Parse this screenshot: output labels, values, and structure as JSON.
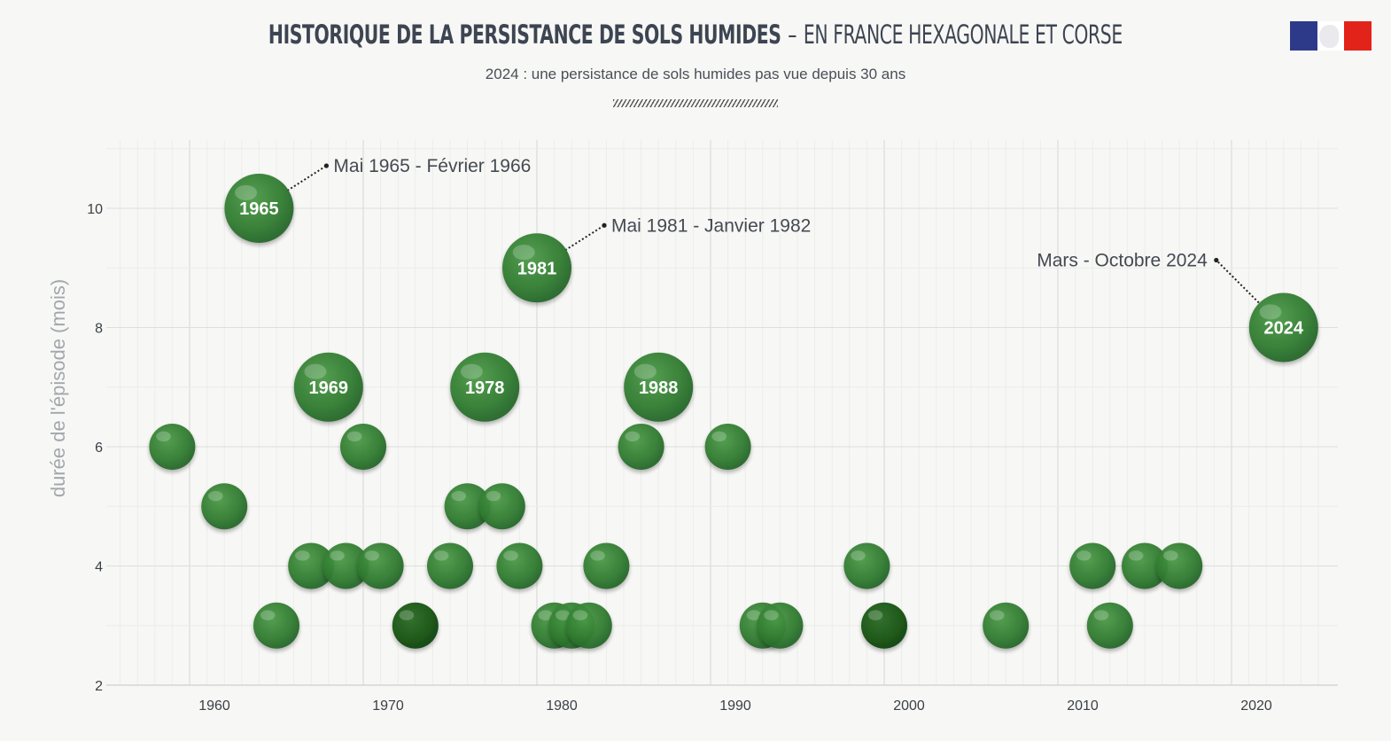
{
  "header": {
    "title_bold": "HISTORIQUE DE LA PERSISTANCE DE SOLS HUMIDES",
    "title_sep": "–",
    "title_rest": "EN FRANCE HEXAGONALE ET CORSE",
    "subtitle": "2024 : une persistance de sols humides pas vue depuis 30 ans"
  },
  "colors": {
    "bubble": "#2f7a2f",
    "bubble_dark": "#14520f",
    "grid": "#e1e1e1",
    "background": "#f7f7f5"
  },
  "chart_data": {
    "type": "scatter",
    "title": "HISTORIQUE DE LA PERSISTANCE DE SOLS HUMIDES – EN FRANCE HEXAGONALE ET CORSE",
    "subtitle": "2024 : une persistance de sols humides pas vue depuis 30 ans",
    "xlabel": "",
    "ylabel": "durée de l'épisode (mois)",
    "xlim": [
      1955,
      2025
    ],
    "ylim": [
      2,
      11
    ],
    "x_ticks": [
      1960,
      1970,
      1980,
      1990,
      2000,
      2010,
      2020
    ],
    "y_ticks": [
      2,
      4,
      6,
      8,
      10
    ],
    "grid": true,
    "points": [
      {
        "year": 1959,
        "months": 6
      },
      {
        "year": 1962,
        "months": 5
      },
      {
        "year": 1964,
        "months": 10,
        "label": "1965",
        "annotation": "Mai 1965 - Février 1966"
      },
      {
        "year": 1965,
        "months": 3
      },
      {
        "year": 1967,
        "months": 4
      },
      {
        "year": 1968,
        "months": 7,
        "label": "1969"
      },
      {
        "year": 1969,
        "months": 4
      },
      {
        "year": 1970,
        "months": 6
      },
      {
        "year": 1971,
        "months": 4
      },
      {
        "year": 1973,
        "months": 3,
        "dark": true
      },
      {
        "year": 1975,
        "months": 4
      },
      {
        "year": 1976,
        "months": 5
      },
      {
        "year": 1977,
        "months": 7,
        "label": "1978"
      },
      {
        "year": 1978,
        "months": 5
      },
      {
        "year": 1979,
        "months": 4
      },
      {
        "year": 1980,
        "months": 9,
        "label": "1981",
        "annotation": "Mai 1981 - Janvier 1982"
      },
      {
        "year": 1981,
        "months": 3
      },
      {
        "year": 1982,
        "months": 3
      },
      {
        "year": 1983,
        "months": 3
      },
      {
        "year": 1984,
        "months": 4
      },
      {
        "year": 1986,
        "months": 6
      },
      {
        "year": 1987,
        "months": 7,
        "label": "1988"
      },
      {
        "year": 1991,
        "months": 6
      },
      {
        "year": 1993,
        "months": 3
      },
      {
        "year": 1994,
        "months": 3
      },
      {
        "year": 1999,
        "months": 4
      },
      {
        "year": 2000,
        "months": 3,
        "dark": true
      },
      {
        "year": 2007,
        "months": 3
      },
      {
        "year": 2012,
        "months": 4
      },
      {
        "year": 2013,
        "months": 3
      },
      {
        "year": 2015,
        "months": 4
      },
      {
        "year": 2017,
        "months": 4
      },
      {
        "year": 2023,
        "months": 8,
        "label": "2024",
        "annotation": "Mars - Octobre 2024"
      }
    ]
  }
}
